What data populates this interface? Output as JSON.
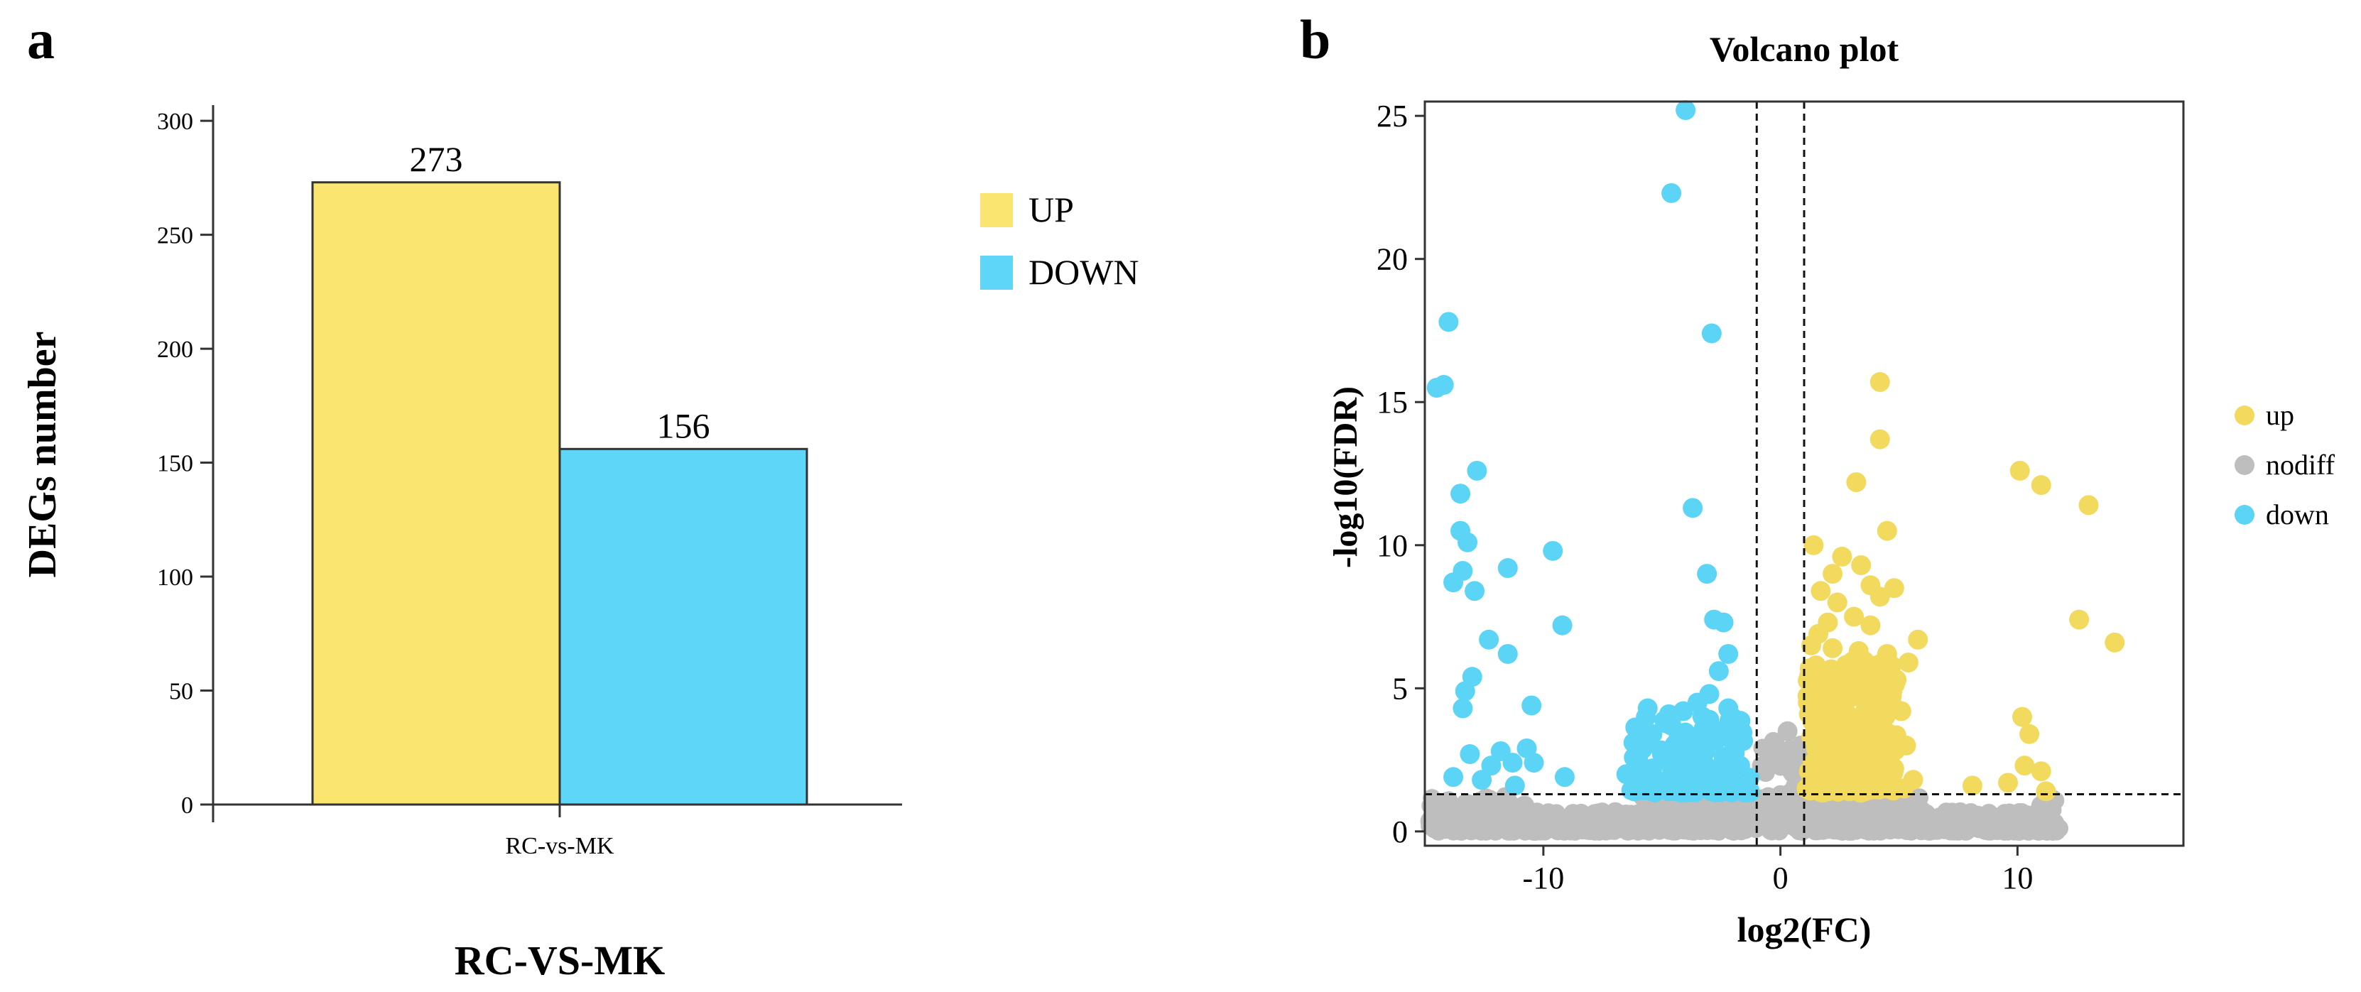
{
  "panels": {
    "a": "a",
    "b": "b"
  },
  "colors": {
    "up": "#F9E56F",
    "down": "#5ED6F7",
    "nodiff": "#BEBEBE",
    "up_point": "#F2DA5E",
    "down_point": "#5CD4F6",
    "edge": "#333333"
  },
  "chart_data": [
    {
      "type": "bar",
      "title": "",
      "categories": [
        "RC-vs-MK"
      ],
      "series": [
        {
          "name": "UP",
          "values": [
            273
          ]
        },
        {
          "name": "DOWN",
          "values": [
            156
          ]
        }
      ],
      "data_labels": [
        "273",
        "156"
      ],
      "xlabel": "RC-VS-MK",
      "ylabel": "DEGs number",
      "ylim": [
        0,
        310
      ],
      "yticks": [
        0,
        50,
        100,
        150,
        200,
        250,
        300
      ],
      "legend": {
        "position": "right",
        "entries": [
          "UP",
          "DOWN"
        ]
      }
    },
    {
      "type": "scatter",
      "title": "Volcano plot",
      "xlabel": "log2(FC)",
      "ylabel": "-log10(FDR)",
      "xlim": [
        -15,
        17
      ],
      "ylim": [
        -0.5,
        25.5
      ],
      "xticks": [
        -10,
        0,
        10
      ],
      "yticks": [
        0,
        5,
        10,
        15,
        20,
        25
      ],
      "thresholds": {
        "log2fc": [
          -1,
          1
        ],
        "neglog10fdr": 1.3
      },
      "legend": {
        "position": "right",
        "entries": [
          "up",
          "nodiff",
          "down"
        ]
      },
      "series": [
        {
          "name": "up",
          "points": [
            [
              4.2,
              15.7
            ],
            [
              4.2,
              13.7
            ],
            [
              3.2,
              12.2
            ],
            [
              4.5,
              10.5
            ],
            [
              1.4,
              10.0
            ],
            [
              2.6,
              9.6
            ],
            [
              3.4,
              9.3
            ],
            [
              2.2,
              9.0
            ],
            [
              3.8,
              8.6
            ],
            [
              4.8,
              8.5
            ],
            [
              1.7,
              8.4
            ],
            [
              4.2,
              8.2
            ],
            [
              2.4,
              8.0
            ],
            [
              3.1,
              7.5
            ],
            [
              2.0,
              7.3
            ],
            [
              3.8,
              7.2
            ],
            [
              1.6,
              6.9
            ],
            [
              5.8,
              6.7
            ],
            [
              1.3,
              6.5
            ],
            [
              2.2,
              6.4
            ],
            [
              3.3,
              6.3
            ],
            [
              4.5,
              6.2
            ],
            [
              5.4,
              5.9
            ],
            [
              1.5,
              5.8
            ],
            [
              2.7,
              5.7
            ],
            [
              3.4,
              5.4
            ],
            [
              4.9,
              5.3
            ],
            [
              2.0,
              5.2
            ],
            [
              3.9,
              5.0
            ],
            [
              1.3,
              4.9
            ],
            [
              2.4,
              4.8
            ],
            [
              3.0,
              4.7
            ],
            [
              4.3,
              4.6
            ],
            [
              1.8,
              4.5
            ],
            [
              2.6,
              4.4
            ],
            [
              3.6,
              4.3
            ],
            [
              5.1,
              4.2
            ],
            [
              1.2,
              4.1
            ],
            [
              2.1,
              4.0
            ],
            [
              2.9,
              3.9
            ],
            [
              4.0,
              3.8
            ],
            [
              1.6,
              3.7
            ],
            [
              2.4,
              3.6
            ],
            [
              3.3,
              3.5
            ],
            [
              4.6,
              3.4
            ],
            [
              1.3,
              3.3
            ],
            [
              2.0,
              3.2
            ],
            [
              2.8,
              3.1
            ],
            [
              3.7,
              3.0
            ],
            [
              5.3,
              3.0
            ],
            [
              1.5,
              2.9
            ],
            [
              2.3,
              2.8
            ],
            [
              3.1,
              2.7
            ],
            [
              4.2,
              2.6
            ],
            [
              1.9,
              2.5
            ],
            [
              2.6,
              2.4
            ],
            [
              3.5,
              2.3
            ],
            [
              4.8,
              2.2
            ],
            [
              1.2,
              2.1
            ],
            [
              2.1,
              2.0
            ],
            [
              3.0,
              1.9
            ],
            [
              3.9,
              1.8
            ],
            [
              5.6,
              1.8
            ],
            [
              1.5,
              1.7
            ],
            [
              2.4,
              1.6
            ],
            [
              3.4,
              1.6
            ],
            [
              4.5,
              1.5
            ],
            [
              1.1,
              1.5
            ],
            [
              2.0,
              1.4
            ],
            [
              2.9,
              1.4
            ],
            [
              5.2,
              1.5
            ],
            [
              1.7,
              2.3
            ],
            [
              2.7,
              3.3
            ],
            [
              1.4,
              4.4
            ],
            [
              3.6,
              2.0
            ],
            [
              10.1,
              12.6
            ],
            [
              11.0,
              12.1
            ],
            [
              13.0,
              11.4
            ],
            [
              12.6,
              7.4
            ],
            [
              14.1,
              6.6
            ],
            [
              10.2,
              4.0
            ],
            [
              10.5,
              3.4
            ],
            [
              10.3,
              2.3
            ],
            [
              11.0,
              2.1
            ],
            [
              9.6,
              1.7
            ],
            [
              11.2,
              1.4
            ],
            [
              8.1,
              1.6
            ]
          ]
        },
        {
          "name": "down",
          "points": [
            [
              -4.0,
              25.2
            ],
            [
              -4.6,
              22.3
            ],
            [
              -14.0,
              17.8
            ],
            [
              -2.9,
              17.4
            ],
            [
              -14.2,
              15.6
            ],
            [
              -14.5,
              15.5
            ],
            [
              -12.8,
              12.6
            ],
            [
              -3.7,
              11.3
            ],
            [
              -13.5,
              11.8
            ],
            [
              -13.5,
              10.5
            ],
            [
              -13.2,
              10.1
            ],
            [
              -9.6,
              9.8
            ],
            [
              -11.5,
              9.2
            ],
            [
              -13.4,
              9.1
            ],
            [
              -13.8,
              8.7
            ],
            [
              -12.9,
              8.4
            ],
            [
              -3.1,
              9.0
            ],
            [
              -9.2,
              7.2
            ],
            [
              -2.8,
              7.4
            ],
            [
              -2.4,
              7.3
            ],
            [
              -12.3,
              6.7
            ],
            [
              -11.5,
              6.2
            ],
            [
              -2.2,
              6.2
            ],
            [
              -13.0,
              5.4
            ],
            [
              -13.3,
              4.9
            ],
            [
              -13.4,
              4.3
            ],
            [
              -10.5,
              4.4
            ],
            [
              -2.6,
              5.6
            ],
            [
              -5.6,
              4.3
            ],
            [
              -3.0,
              4.8
            ],
            [
              -3.5,
              4.5
            ],
            [
              -4.1,
              4.2
            ],
            [
              -2.2,
              4.3
            ],
            [
              -4.6,
              3.7
            ],
            [
              -3.0,
              3.9
            ],
            [
              -5.4,
              3.4
            ],
            [
              -3.6,
              3.3
            ],
            [
              -2.7,
              3.2
            ],
            [
              -1.9,
              3.0
            ],
            [
              -6.2,
              3.1
            ],
            [
              -4.3,
              3.0
            ],
            [
              -3.2,
              2.8
            ],
            [
              -5.0,
              2.7
            ],
            [
              -2.4,
              2.6
            ],
            [
              -6.0,
              2.5
            ],
            [
              -3.8,
              2.4
            ],
            [
              -1.7,
              2.3
            ],
            [
              -5.4,
              2.2
            ],
            [
              -4.5,
              2.1
            ],
            [
              -2.9,
              2.0
            ],
            [
              -6.5,
              2.0
            ],
            [
              -3.5,
              1.9
            ],
            [
              -2.1,
              1.8
            ],
            [
              -5.0,
              1.7
            ],
            [
              -4.0,
              1.6
            ],
            [
              -1.5,
              1.5
            ],
            [
              -5.8,
              1.5
            ],
            [
              -3.0,
              1.5
            ],
            [
              -2.6,
              1.7
            ],
            [
              -4.7,
              1.4
            ],
            [
              -13.1,
              2.7
            ],
            [
              -12.2,
              2.3
            ],
            [
              -11.8,
              2.8
            ],
            [
              -11.3,
              2.4
            ],
            [
              -10.7,
              2.9
            ],
            [
              -10.4,
              2.4
            ],
            [
              -12.6,
              1.8
            ],
            [
              -9.1,
              1.9
            ],
            [
              -13.8,
              1.9
            ],
            [
              -11.2,
              1.6
            ]
          ]
        },
        {
          "name": "nodiff",
          "note": "dense band of non-significant genes near baseline, drawn as a scatter cloud",
          "points": [
            [
              -14.6,
              0.6
            ],
            [
              -13.0,
              0.3
            ],
            [
              -12.0,
              0.3
            ],
            [
              -11.0,
              0.5
            ],
            [
              -10.0,
              0.4
            ],
            [
              -9.0,
              0.3
            ],
            [
              -8.0,
              0.5
            ],
            [
              -7.0,
              0.4
            ],
            [
              -6.0,
              0.6
            ],
            [
              -5.0,
              0.5
            ],
            [
              -4.0,
              0.7
            ],
            [
              -3.0,
              0.8
            ],
            [
              -2.0,
              0.9
            ],
            [
              -1.0,
              1.0
            ],
            [
              0.0,
              1.1
            ],
            [
              1.0,
              1.0
            ],
            [
              2.0,
              0.9
            ],
            [
              3.0,
              0.8
            ],
            [
              4.0,
              0.7
            ],
            [
              5.0,
              0.6
            ],
            [
              6.0,
              0.4
            ],
            [
              7.0,
              0.3
            ],
            [
              8.0,
              0.4
            ],
            [
              9.0,
              0.5
            ],
            [
              10.0,
              0.6
            ],
            [
              11.0,
              0.9
            ],
            [
              11.5,
              1.1
            ],
            [
              -0.5,
              2.5
            ],
            [
              -0.2,
              3.0
            ],
            [
              0.3,
              3.5
            ],
            [
              0.8,
              2.8
            ],
            [
              -11.6,
              1.2
            ],
            [
              -10.8,
              0.9
            ]
          ]
        }
      ]
    }
  ]
}
